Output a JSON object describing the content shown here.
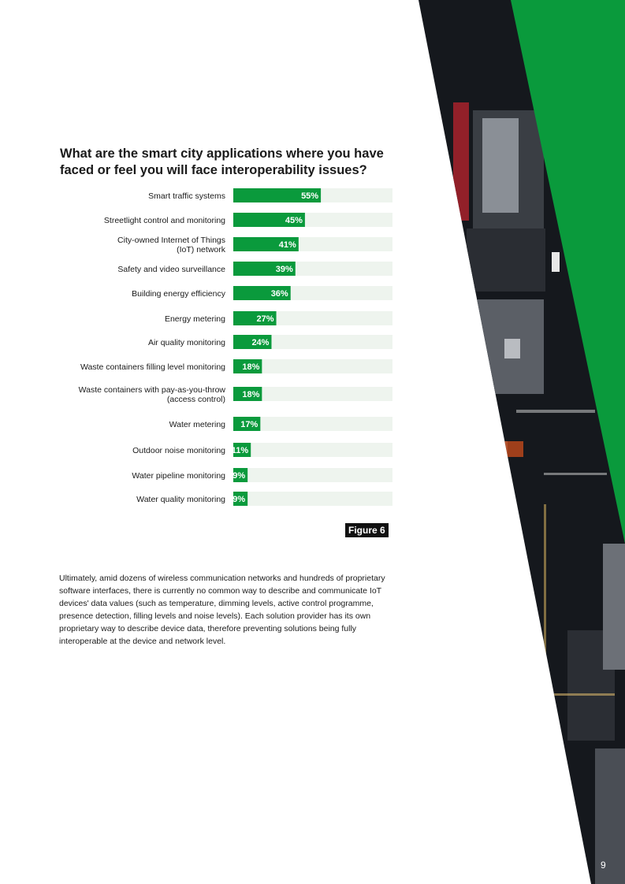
{
  "figure_label": "Figure 6",
  "page_number": "9",
  "body_text": "Ultimately, amid dozens of wireless communication networks and hundreds of proprietary software interfaces, there is currently no common way to describe and communicate IoT devices' data values (such as temperature, dimming levels, active control programme, presence detection, filling levels and noise levels). Each solution provider has its own proprietary way to describe device data, therefore preventing solutions being fully interoperable at the device and network level.",
  "colors": {
    "accent_green": "#0a9a3c",
    "track": "#eef4ee",
    "dark": "#111111"
  },
  "chart_data": {
    "type": "bar",
    "orientation": "horizontal",
    "title": "What are the smart city applications where you have faced or feel you will face interoperability issues?",
    "unit": "%",
    "xlim": [
      0,
      100
    ],
    "categories": [
      "Smart traffic systems",
      "Streetlight control and monitoring",
      "City-owned Internet of Things (IoT) network",
      "Safety and video surveillance",
      "Building energy efficiency",
      "Energy metering",
      "Air quality monitoring",
      "Waste containers filling level monitoring",
      "Waste containers with pay-as-you-throw (access control)",
      "Water metering",
      "Outdoor noise monitoring",
      "Water pipeline monitoring",
      "Water quality monitoring"
    ],
    "values": [
      55,
      45,
      41,
      39,
      36,
      27,
      24,
      18,
      18,
      17,
      11,
      9,
      9
    ],
    "value_labels": [
      "55%",
      "45%",
      "41%",
      "39%",
      "36%",
      "27%",
      "24%",
      "18%",
      "18%",
      "17%",
      "11%",
      "9%",
      "9%"
    ]
  }
}
